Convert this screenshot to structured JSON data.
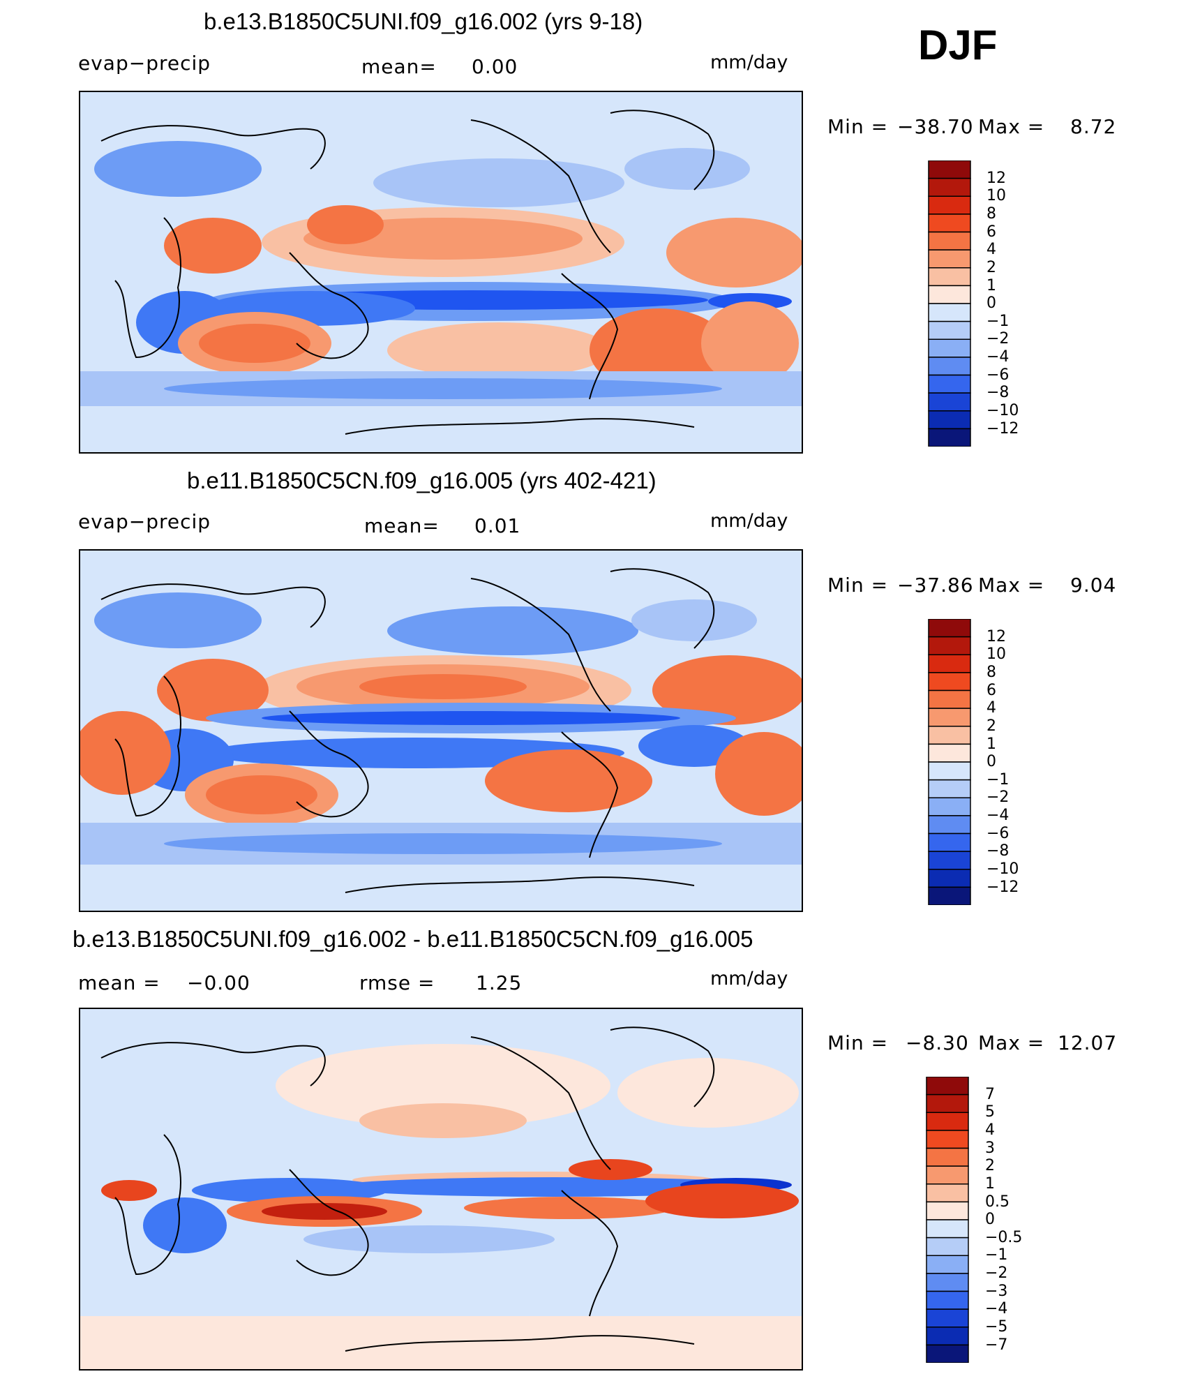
{
  "season": "DJF",
  "units": "mm/day",
  "colors": {
    "fill_scale_13": [
      "#0a0f7a",
      "#0a21a6",
      "#0b33cf",
      "#1f55f0",
      "#3f78f5",
      "#6d9cf5",
      "#a8c4f7",
      "#d6e6fb",
      "#fde7dc",
      "#f9c0a3",
      "#f7996f",
      "#f47444",
      "#e8451e",
      "#c3200f",
      "#8f0a0a"
    ],
    "base_ocean": "#d6e6fb"
  },
  "chart_data": [
    {
      "type": "heatmap",
      "id": "panel-1",
      "title": "b.e13.B1850C5UNI.f09_g16.002 (yrs 9-18)",
      "variable": "evap−precip",
      "stat_left_label": "",
      "mean_label": "mean=",
      "mean_value": "0.00",
      "units": "mm/day",
      "min_label": "Min  =",
      "min_value": "−38.70",
      "max_label": "Max  =",
      "max_value": "8.72",
      "colorbar_levels": [
        "12",
        "10",
        "8",
        "6",
        "4",
        "2",
        "1",
        "0",
        "−1",
        "−2",
        "−4",
        "−6",
        "−8",
        "−10",
        "−12"
      ]
    },
    {
      "type": "heatmap",
      "id": "panel-2",
      "title": "b.e11.B1850C5CN.f09_g16.005 (yrs 402-421)",
      "variable": "evap−precip",
      "mean_label": "mean=",
      "mean_value": "0.01",
      "units": "mm/day",
      "min_label": "Min  =",
      "min_value": "−37.86",
      "max_label": "Max  =",
      "max_value": "9.04",
      "colorbar_levels": [
        "12",
        "10",
        "8",
        "6",
        "4",
        "2",
        "1",
        "0",
        "−1",
        "−2",
        "−4",
        "−6",
        "−8",
        "−10",
        "−12"
      ]
    },
    {
      "type": "heatmap",
      "id": "panel-3",
      "title": "b.e13.B1850C5UNI.f09_g16.002 - b.e11.B1850C5CN.f09_g16.005",
      "mean_label": "mean  =",
      "mean_value": "−0.00",
      "rmse_label": "rmse  =",
      "rmse_value": "1.25",
      "units": "mm/day",
      "min_label": "Min  =",
      "min_value": "−8.30",
      "max_label": "Max  =",
      "max_value": "12.07",
      "colorbar_levels": [
        "7",
        "5",
        "4",
        "3",
        "2",
        "1",
        "0.5",
        "0",
        "−0.5",
        "−1",
        "−2",
        "−3",
        "−4",
        "−5",
        "−7"
      ]
    }
  ]
}
